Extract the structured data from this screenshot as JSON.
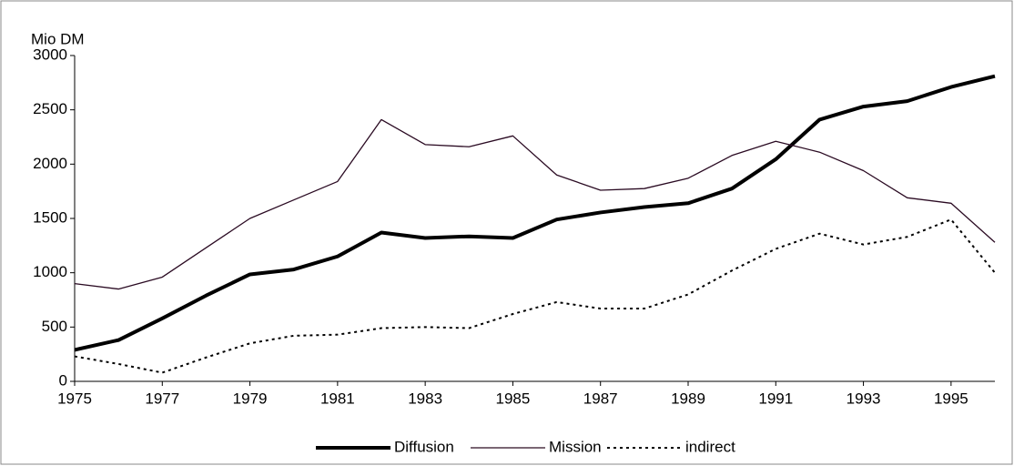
{
  "chart_data": {
    "type": "line",
    "ylabel": "Mio DM",
    "x": [
      1975,
      1976,
      1977,
      1978,
      1979,
      1980,
      1981,
      1982,
      1983,
      1984,
      1985,
      1986,
      1987,
      1988,
      1989,
      1990,
      1991,
      1992,
      1993,
      1994,
      1995,
      1996
    ],
    "xlim": [
      1975,
      1996
    ],
    "xticks": [
      1975,
      1977,
      1979,
      1981,
      1983,
      1985,
      1987,
      1989,
      1991,
      1993,
      1995
    ],
    "ylim": [
      0,
      3000
    ],
    "yticks": [
      0,
      500,
      1000,
      1500,
      2000,
      2500,
      3000
    ],
    "grid": false,
    "legend": "bottom",
    "series": [
      {
        "name": "Diffusion",
        "color": "#000000",
        "line_style": "thick",
        "values": [
          290,
          380,
          580,
          790,
          985,
          1030,
          1150,
          1370,
          1320,
          1335,
          1320,
          1490,
          1555,
          1605,
          1640,
          1775,
          2045,
          2410,
          2530,
          2580,
          2710,
          2810
        ]
      },
      {
        "name": "Mission",
        "color": "#2a0a22",
        "line_style": "thin",
        "values": [
          900,
          850,
          960,
          1230,
          1500,
          1670,
          1840,
          2410,
          2180,
          2160,
          2260,
          1900,
          1760,
          1775,
          1870,
          2080,
          2210,
          2110,
          1940,
          1690,
          1640,
          1280
        ]
      },
      {
        "name": "indirect",
        "color": "#000000",
        "line_style": "dotted",
        "values": [
          230,
          160,
          80,
          220,
          350,
          420,
          430,
          490,
          500,
          490,
          620,
          730,
          670,
          670,
          800,
          1020,
          1220,
          1360,
          1260,
          1330,
          1490,
          1000
        ]
      }
    ]
  }
}
